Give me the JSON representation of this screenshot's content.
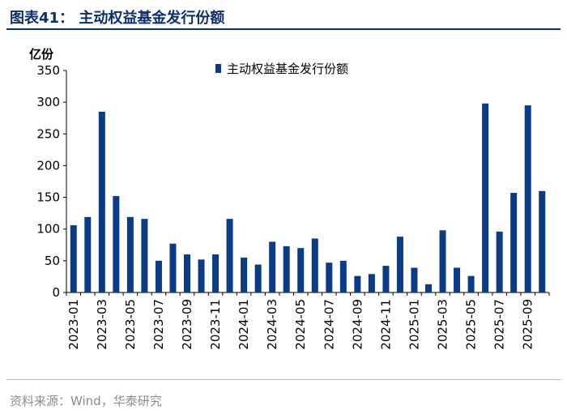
{
  "header": {
    "title": "图表41：  主动权益基金发行份额"
  },
  "footer": {
    "source": "资料来源：Wind，华泰研究"
  },
  "colors": {
    "bar": "#0b3a86",
    "accent": "#0b2f6b"
  },
  "chart_data": {
    "type": "bar",
    "title": "",
    "xlabel": "",
    "ylabel": "亿份",
    "ylim": [
      0,
      350
    ],
    "yticks": [
      0,
      50,
      100,
      150,
      200,
      250,
      300,
      350
    ],
    "grid": false,
    "legend_position": "top-center",
    "categories": [
      "2023-01",
      "2023-02",
      "2023-03",
      "2023-04",
      "2023-05",
      "2023-06",
      "2023-07",
      "2023-08",
      "2023-09",
      "2023-10",
      "2023-11",
      "2023-12",
      "2024-01",
      "2024-02",
      "2024-03",
      "2024-04",
      "2024-05",
      "2024-06",
      "2024-07",
      "2024-08",
      "2024-09",
      "2024-10",
      "2024-11",
      "2024-12",
      "2025-01",
      "2025-02",
      "2025-03",
      "2025-04",
      "2025-05",
      "2025-06",
      "2025-07",
      "2025-08",
      "2025-09",
      "2025-10"
    ],
    "x_tick_labels": [
      "2023-01",
      "2023-03",
      "2023-05",
      "2023-07",
      "2023-09",
      "2023-11",
      "2024-01",
      "2024-03",
      "2024-05",
      "2024-07",
      "2024-09",
      "2024-11",
      "2025-01",
      "2025-03",
      "2025-05",
      "2025-07",
      "2025-09"
    ],
    "series": [
      {
        "name": "主动权益基金发行份额",
        "values": [
          106,
          119,
          285,
          152,
          119,
          116,
          50,
          77,
          60,
          52,
          60,
          116,
          55,
          44,
          80,
          73,
          70,
          85,
          47,
          50,
          26,
          29,
          42,
          88,
          39,
          13,
          98,
          39,
          26,
          298,
          96,
          157,
          295,
          160
        ]
      }
    ]
  }
}
